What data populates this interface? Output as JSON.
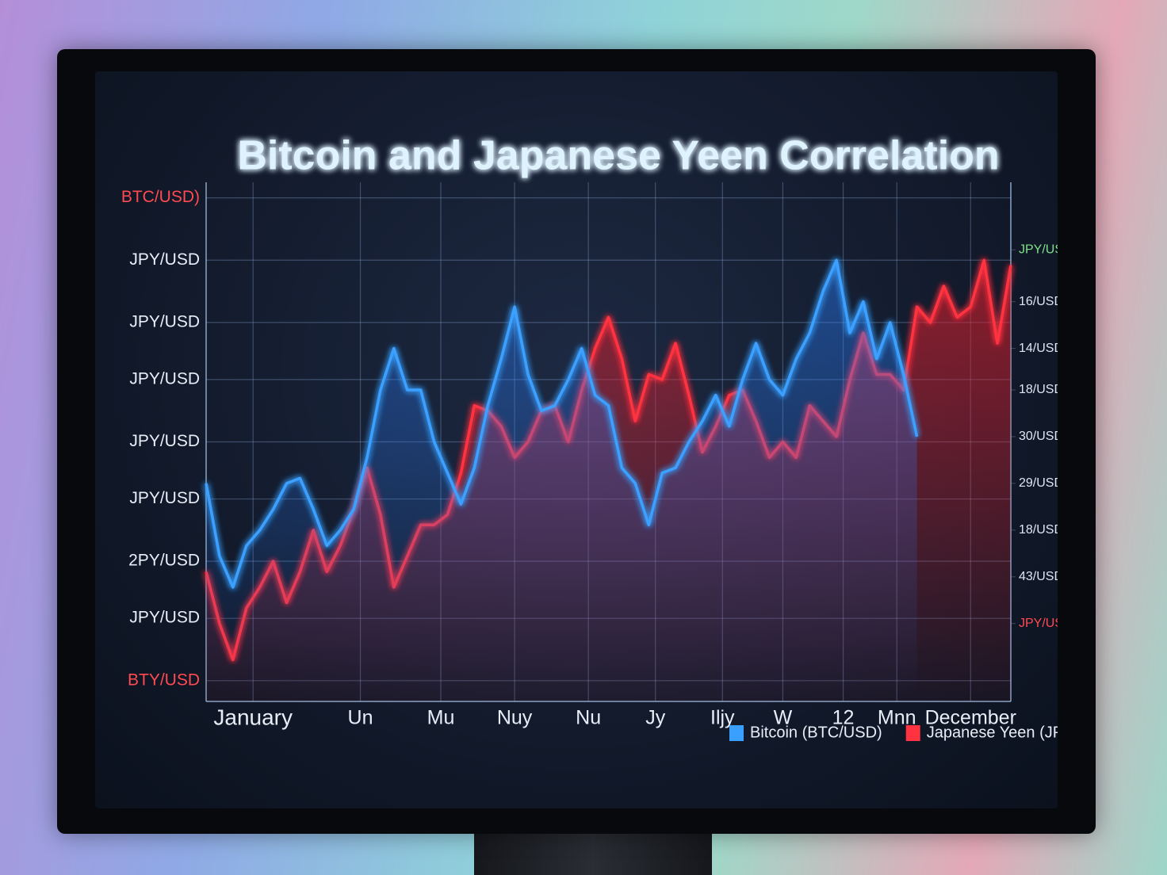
{
  "chart_data": {
    "type": "line",
    "title": "Bitcoin and Japanese Yeen Correlation",
    "x": [
      0,
      1,
      2,
      3,
      4,
      5,
      6,
      7,
      8,
      9,
      10,
      11,
      12,
      13,
      14,
      15,
      16,
      17,
      18,
      19,
      20,
      21,
      22,
      23,
      24,
      25,
      26,
      27,
      28,
      29,
      30,
      31,
      32,
      33,
      34,
      35,
      36,
      37,
      38,
      39,
      40,
      41,
      42,
      43,
      44,
      45,
      46,
      47,
      48,
      49,
      50,
      51,
      52,
      53,
      54,
      55,
      56,
      57,
      58,
      59,
      60
    ],
    "xlim": [
      0,
      60
    ],
    "xticks": [
      {
        "value": 3.5,
        "label": "January"
      },
      {
        "value": 11.5,
        "label": "Un"
      },
      {
        "value": 17.5,
        "label": "Mu"
      },
      {
        "value": 23,
        "label": "Nuy"
      },
      {
        "value": 28.5,
        "label": "Nu"
      },
      {
        "value": 33.5,
        "label": "Jy"
      },
      {
        "value": 38.5,
        "label": "Iljy"
      },
      {
        "value": 43,
        "label": "W"
      },
      {
        "value": 47.5,
        "label": "12"
      },
      {
        "value": 51.5,
        "label": "Mnn"
      },
      {
        "value": 57,
        "label": "December"
      }
    ],
    "ylim": [
      0,
      100
    ],
    "yticks": [
      {
        "value": 97,
        "label": "BTC/USD)"
      },
      {
        "value": 85,
        "label": "JPY/USD"
      },
      {
        "value": 73,
        "label": "JPY/USD"
      },
      {
        "value": 62,
        "label": "JPY/USD"
      },
      {
        "value": 50,
        "label": "JPY/USD"
      },
      {
        "value": 39,
        "label": "JPY/USD"
      },
      {
        "value": 27,
        "label": "2PY/USD"
      },
      {
        "value": 16,
        "label": "JPY/USD"
      },
      {
        "value": 4,
        "label": "BTY/USD"
      }
    ],
    "y2lim": [
      0,
      100
    ],
    "y2ticks": [
      {
        "value": 87,
        "label": "JPY/USD"
      },
      {
        "value": 77,
        "label": "16/USD"
      },
      {
        "value": 68,
        "label": "14/USD"
      },
      {
        "value": 60,
        "label": "18/USD"
      },
      {
        "value": 51,
        "label": "30/USD"
      },
      {
        "value": 42,
        "label": "29/USD"
      },
      {
        "value": 33,
        "label": "18/USD"
      },
      {
        "value": 24,
        "label": "43/USD"
      },
      {
        "value": 15,
        "label": "JPY/USD"
      }
    ],
    "grid": true,
    "legend": "lower right",
    "series": [
      {
        "name": "Bitcoin (BTC/USD)",
        "color": "#3aa0ff",
        "values": [
          42,
          28,
          22,
          30,
          33,
          37,
          42,
          43,
          37,
          30,
          33,
          37,
          47,
          60,
          68,
          60,
          60,
          50,
          44,
          38,
          45,
          57,
          66,
          76,
          63,
          56,
          57,
          62,
          68,
          59,
          57,
          45,
          42,
          34,
          44,
          45,
          50,
          54,
          59,
          53,
          62,
          69,
          62,
          59,
          66,
          71,
          79,
          85,
          71,
          77,
          66,
          73,
          63,
          51,
          null,
          null,
          null,
          null,
          null,
          null,
          null
        ]
      },
      {
        "name": "Japanese Yeen (JPY/USD)",
        "color": "#ff3340",
        "values": [
          25,
          15,
          8,
          18,
          22,
          27,
          19,
          25,
          33,
          25,
          30,
          37,
          45,
          36,
          22,
          28,
          34,
          34,
          36,
          44,
          57,
          56,
          53,
          47,
          50,
          56,
          57,
          50,
          60,
          68,
          74,
          66,
          54,
          63,
          62,
          69,
          59,
          48,
          53,
          59,
          60,
          54,
          47,
          50,
          47,
          57,
          54,
          51,
          62,
          71,
          63,
          63,
          60,
          76,
          73,
          80,
          74,
          76,
          85,
          69,
          84
        ]
      }
    ]
  }
}
